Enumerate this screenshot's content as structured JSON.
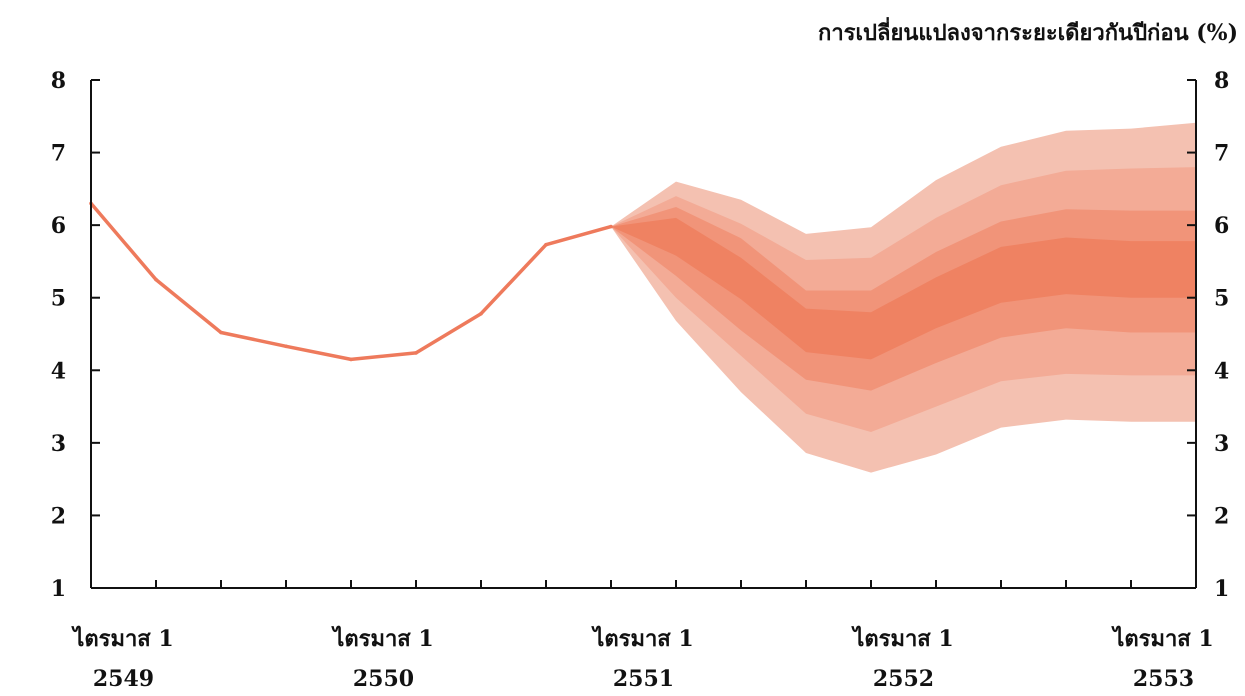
{
  "chart_data": {
    "type": "area",
    "unit_label": "การเปลี่ยนแปลงจากระยะเดียวกันปีก่อน (%)",
    "title": "",
    "xlabel": "",
    "ylabel": "",
    "ylim": [
      1,
      8
    ],
    "y_ticks": [
      1,
      2,
      3,
      4,
      5,
      6,
      7,
      8
    ],
    "y_axes": [
      "left",
      "right"
    ],
    "grid": false,
    "legend": "none",
    "x_ticks": [
      {
        "quarter_index": 0,
        "line1": "ไตรมาส 1",
        "line2": "2549"
      },
      {
        "quarter_index": 4,
        "line1": "ไตรมาส 1",
        "line2": "2550"
      },
      {
        "quarter_index": 8,
        "line1": "ไตรมาส 1",
        "line2": "2551"
      },
      {
        "quarter_index": 12,
        "line1": "ไตรมาส 1",
        "line2": "2552"
      },
      {
        "quarter_index": 16,
        "line1": "ไตรมาส 1",
        "line2": "2553"
      }
    ],
    "quarter_count": 17,
    "history": {
      "quarter_index": [
        0,
        1,
        2,
        3,
        4,
        5,
        6,
        7,
        8
      ],
      "values": [
        6.3,
        5.25,
        4.52,
        4.33,
        4.15,
        4.24,
        4.78,
        5.73,
        5.98
      ]
    },
    "fan": {
      "quarter_index": [
        8,
        9,
        10,
        11,
        12,
        13,
        14,
        15,
        16,
        17
      ],
      "bands": [
        {
          "lower": [
            5.98,
            4.68,
            3.7,
            2.86,
            2.59,
            2.84,
            3.21,
            3.32,
            3.29,
            3.29
          ],
          "upper": [
            5.98,
            6.6,
            6.35,
            5.88,
            5.97,
            6.62,
            7.08,
            7.3,
            7.33,
            7.41
          ]
        },
        {
          "lower": [
            5.98,
            5.0,
            4.2,
            3.4,
            3.15,
            3.5,
            3.85,
            3.95,
            3.93,
            3.93
          ],
          "upper": [
            5.98,
            6.4,
            6.02,
            5.52,
            5.55,
            6.1,
            6.55,
            6.75,
            6.78,
            6.8
          ]
        },
        {
          "lower": [
            5.98,
            5.3,
            4.55,
            3.87,
            3.72,
            4.1,
            4.45,
            4.58,
            4.52,
            4.52
          ],
          "upper": [
            5.98,
            6.25,
            5.82,
            5.1,
            5.1,
            5.63,
            6.05,
            6.22,
            6.2,
            6.2
          ]
        },
        {
          "lower": [
            5.98,
            5.58,
            4.98,
            4.25,
            4.15,
            4.58,
            4.93,
            5.05,
            5.0,
            5.0
          ],
          "upper": [
            5.98,
            6.1,
            5.55,
            4.85,
            4.8,
            5.28,
            5.7,
            5.83,
            5.78,
            5.78
          ]
        }
      ]
    },
    "colors": {
      "line": "#EE7A5C",
      "bands": [
        "#F4C1B1",
        "#F3AB96",
        "#F19479",
        "#EF8262"
      ],
      "axis": "#111111"
    }
  }
}
